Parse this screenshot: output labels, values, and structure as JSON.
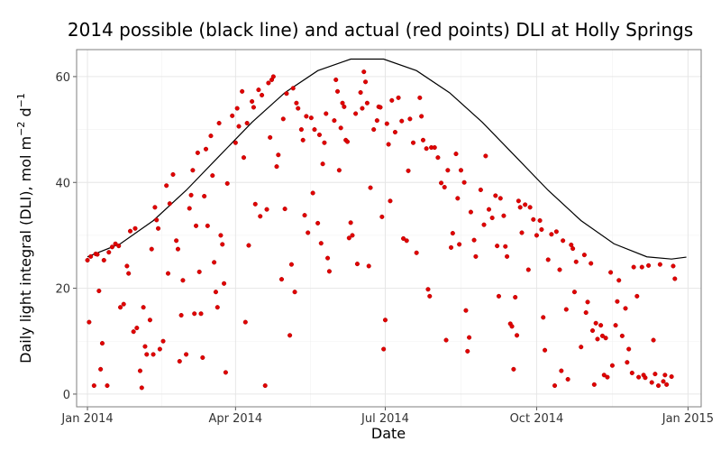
{
  "chart_data": {
    "type": "scatter",
    "title": "2014 possible (black line) and actual (red points) DLI at Holly Springs",
    "xlabel": "Date",
    "ylabel": [
      "Daily light integral (DLI), mol m",
      "−2",
      " d",
      "−1"
    ],
    "xlim": [
      -6.6,
      373
    ],
    "ylim": [
      -2.4,
      65.1
    ],
    "xticks": [
      {
        "value": 0,
        "label": "Jan 2014"
      },
      {
        "value": 90,
        "label": "Apr 2014"
      },
      {
        "value": 181,
        "label": "Jul 2014"
      },
      {
        "value": 273,
        "label": "Oct 2014"
      },
      {
        "value": 365,
        "label": "Jan 2015"
      }
    ],
    "yticks": [
      0,
      20,
      40,
      60
    ],
    "grid": true,
    "series": [
      {
        "kind": "line",
        "color": "#000000",
        "x": [
          0,
          20,
          40,
          60,
          80,
          100,
          120,
          140,
          160,
          180,
          200,
          220,
          240,
          260,
          280,
          300,
          320,
          340,
          355,
          364
        ],
        "values": [
          25.94,
          28.41,
          32.78,
          38.51,
          44.95,
          51.37,
          56.97,
          61.12,
          63.31,
          63.31,
          61.12,
          56.97,
          51.37,
          44.95,
          38.51,
          32.78,
          28.41,
          25.94,
          25.52,
          25.88
        ]
      },
      {
        "kind": "points",
        "color": "#e00000",
        "x": [
          0,
          1,
          2,
          4,
          5,
          6,
          7,
          8,
          9,
          10,
          12,
          13,
          15,
          17,
          19,
          20,
          22,
          24,
          25,
          26,
          28,
          29,
          30,
          32,
          33,
          34,
          35,
          36,
          38,
          39,
          40,
          41,
          42,
          43,
          44,
          46,
          48,
          49,
          50,
          52,
          54,
          55,
          56,
          57,
          58,
          60,
          62,
          63,
          64,
          65,
          66,
          67,
          68,
          69,
          70,
          71,
          72,
          73,
          75,
          76,
          77,
          78,
          79,
          80,
          81,
          82,
          83,
          84,
          85,
          88,
          90,
          91,
          92,
          94,
          95,
          96,
          97,
          98,
          100,
          101,
          102,
          104,
          105,
          106,
          108,
          109,
          110,
          111,
          112,
          113,
          115,
          116,
          118,
          119,
          120,
          121,
          123,
          124,
          125,
          126,
          127,
          128,
          130,
          131,
          132,
          133,
          134,
          136,
          137,
          138,
          140,
          141,
          142,
          143,
          144,
          145,
          146,
          147,
          150,
          151,
          152,
          153,
          154,
          155,
          156,
          157,
          158,
          159,
          160,
          161,
          163,
          164,
          166,
          167,
          168,
          169,
          170,
          171,
          172,
          174,
          176,
          177,
          178,
          179,
          180,
          181,
          182,
          183,
          184,
          185,
          187,
          189,
          191,
          192,
          194,
          195,
          196,
          198,
          200,
          202,
          203,
          204,
          206,
          207,
          208,
          209,
          211,
          213,
          215,
          217,
          218,
          219,
          221,
          222,
          224,
          225,
          226,
          227,
          229,
          230,
          231,
          232,
          233,
          235,
          236,
          239,
          241,
          242,
          244,
          246,
          248,
          249,
          250,
          251,
          253,
          254,
          255,
          257,
          258,
          259,
          260,
          261,
          262,
          263,
          264,
          266,
          268,
          269,
          271,
          273,
          275,
          276,
          277,
          278,
          280,
          282,
          284,
          285,
          287,
          288,
          289,
          291,
          292,
          294,
          295,
          296,
          297,
          300,
          302,
          303,
          304,
          306,
          307,
          308,
          309,
          310,
          312,
          313,
          314,
          315,
          316,
          318,
          319,
          321,
          322,
          323,
          325,
          327,
          328,
          329,
          331,
          332,
          334,
          335,
          337,
          338,
          339,
          341,
          343,
          344,
          345,
          347,
          348,
          350,
          351,
          352,
          355,
          356,
          357
        ],
        "values": [
          25.3,
          13.6,
          26,
          1.6,
          26.5,
          26.4,
          19.5,
          4.7,
          9.6,
          25.3,
          1.6,
          26.8,
          27.8,
          28.4,
          28,
          16.4,
          17,
          24.2,
          22.8,
          30.8,
          11.8,
          31.3,
          12.5,
          4.4,
          1.2,
          16.4,
          9,
          7.5,
          14,
          27.4,
          7.5,
          35.3,
          32.9,
          31.3,
          8.5,
          10,
          39.4,
          22.8,
          36,
          41.5,
          29,
          27.4,
          6.2,
          14.9,
          21.5,
          7.5,
          35.1,
          37.6,
          42.3,
          15.2,
          31.8,
          45.6,
          23.1,
          15.2,
          6.9,
          37.4,
          46.3,
          31.8,
          48.8,
          41.3,
          24.9,
          19.3,
          16.4,
          51.2,
          30,
          28.3,
          20.9,
          4.1,
          39.8,
          52.6,
          47.5,
          54,
          50.6,
          57.2,
          44.7,
          13.6,
          51.2,
          28.1,
          55.3,
          54.2,
          35.9,
          57.5,
          33.6,
          56.5,
          1.6,
          34.9,
          58.8,
          48.5,
          59.4,
          60,
          43,
          45.2,
          21.7,
          52,
          35,
          56.8,
          11.1,
          24.5,
          57.8,
          19.3,
          55,
          54,
          50,
          48,
          33.8,
          52.5,
          30.5,
          52.2,
          38,
          50,
          32.3,
          49,
          28.5,
          43.5,
          47.5,
          53,
          25.7,
          23.2,
          51.7,
          59.4,
          57.2,
          42.3,
          50.3,
          55,
          54.3,
          48,
          47.7,
          29.5,
          32.4,
          30,
          53,
          24.6,
          57,
          54,
          60.9,
          59,
          55,
          24.2,
          39,
          50,
          51.7,
          54.3,
          54.2,
          33.5,
          8.5,
          14,
          51.1,
          47.2,
          36.5,
          55.5,
          49.5,
          56,
          51.6,
          29.4,
          29,
          42.2,
          52,
          47.5,
          26.7,
          56,
          52.5,
          48,
          46.4,
          19.8,
          18.5,
          46.6,
          46.6,
          44.7,
          39.9,
          39.1,
          10.2,
          42.3,
          27.7,
          30.4,
          45.4,
          37,
          28.3,
          42.3,
          40,
          15.8,
          8.1,
          10.7,
          34.4,
          29.1,
          26,
          38.6,
          32,
          45,
          34.9,
          33.3,
          37.5,
          28,
          18.5,
          37,
          33.7,
          27.9,
          26,
          13.3,
          12.8,
          4.7,
          18.3,
          11.1,
          36.5,
          35.3,
          30.5,
          35.8,
          23.5,
          35.3,
          33,
          30,
          32.8,
          31.1,
          14.5,
          8.3,
          25.4,
          30.2,
          1.6,
          30.7,
          23.5,
          4.4,
          29,
          16,
          2.8,
          28.2,
          27.5,
          19.3,
          25,
          8.9,
          26.3,
          15.4,
          17.4,
          24.7,
          12,
          1.8,
          13.4,
          10.4,
          13,
          11,
          3.6,
          10.6,
          3.2,
          23,
          5.4,
          13,
          17.5,
          21.5,
          11,
          16.2,
          6,
          8.5,
          4,
          24,
          18.5,
          3.2,
          24,
          3.6,
          3.1,
          24.3,
          2.2,
          10.2,
          3.8,
          1.6,
          24.5,
          2.4,
          3.6,
          1.8,
          3.3,
          24.2,
          21.8
        ]
      }
    ]
  }
}
